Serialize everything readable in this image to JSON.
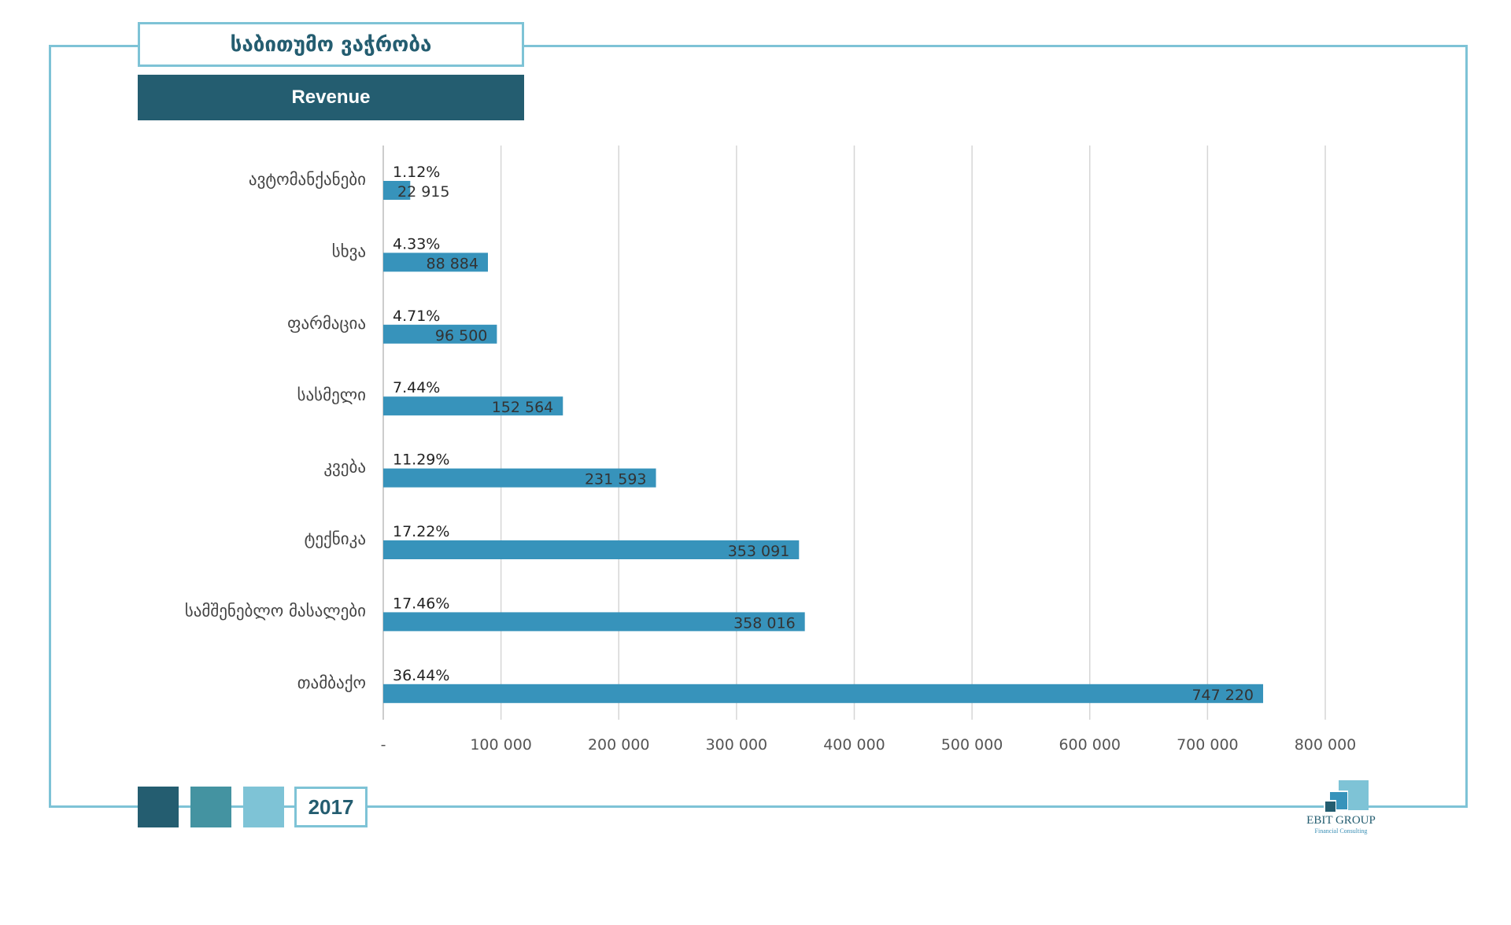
{
  "header": {
    "title": "საბითუმო ვაჭრობა",
    "subtitle": "Revenue"
  },
  "footer": {
    "year": "2017",
    "legend_colors": [
      "#245d70",
      "#4493a1",
      "#7ec3d6"
    ],
    "logo_name": "EBIT GROUP",
    "logo_tagline": "Financial Consulting"
  },
  "chart_data": {
    "type": "bar",
    "orientation": "horizontal",
    "categories": [
      "ავტომანქანები",
      "სხვა",
      "ფარმაცია",
      "სასმელი",
      "კვება",
      "ტექნიკა",
      "სამშენებლო მასალები",
      "თამბაქო"
    ],
    "values": [
      22915,
      88884,
      96500,
      152564,
      231593,
      353091,
      358016,
      747220
    ],
    "value_labels": [
      "22 915",
      "88 884",
      "96 500",
      "152 564",
      "231 593",
      "353 091",
      "358 016",
      "747 220"
    ],
    "percent_labels": [
      "1.12%",
      "4.33%",
      "4.71%",
      "7.44%",
      "11.29%",
      "17.22%",
      "17.46%",
      "36.44%"
    ],
    "xlim": [
      0,
      800000
    ],
    "ticks": [
      0,
      100000,
      200000,
      300000,
      400000,
      500000,
      600000,
      700000,
      800000
    ],
    "tick_labels": [
      "-",
      "100 000",
      "200 000",
      "300 000",
      "400 000",
      "500 000",
      "600 000",
      "700 000",
      "800 000"
    ],
    "bar_color": "#3793bb",
    "grid": true
  }
}
